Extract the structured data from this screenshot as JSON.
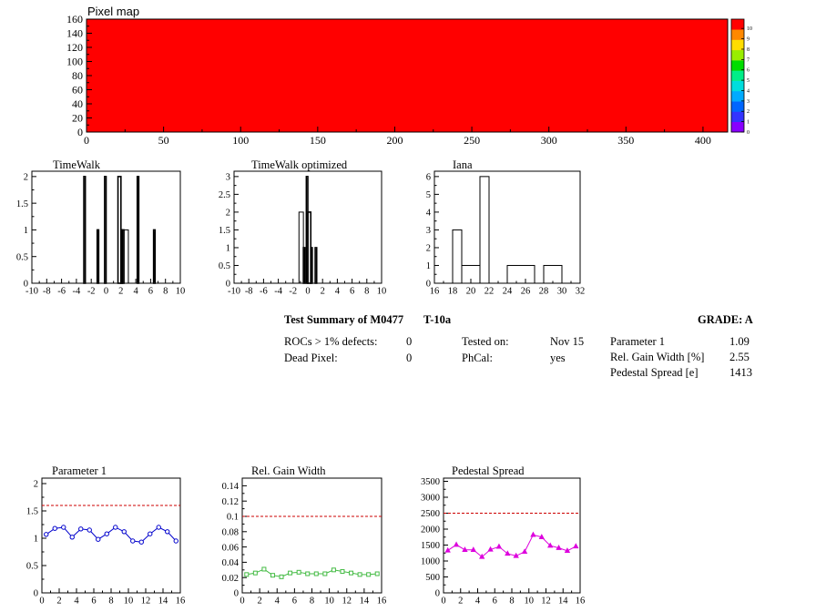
{
  "colors": {
    "map_fill": "#ff0000",
    "series_param1": "#0000cc",
    "series_gain": "#44bb44",
    "series_ped": "#dd00dd",
    "threshold": "#cc0000"
  },
  "summary": {
    "title": "Test Summary of M0477",
    "temp": "T-10a",
    "grade": "GRADE:  A",
    "rocs_label": "ROCs > 1% defects:",
    "rocs_value": "0",
    "dead_label": "Dead Pixel:",
    "dead_value": "0",
    "tested_label": "Tested on:",
    "tested_value": "Nov 15",
    "phcal_label": "PhCal:",
    "phcal_value": "yes",
    "p1_label": "Parameter 1",
    "p1_value": "1.09",
    "gain_label": "Rel. Gain Width [%]",
    "gain_value": "2.55",
    "ped_label": "Pedestal Spread [e]",
    "ped_value": "1413"
  },
  "chart_data": [
    {
      "id": "pixelmap",
      "type": "heatmap",
      "title": "Pixel map",
      "xlim": [
        0,
        416
      ],
      "ylim": [
        0,
        160
      ],
      "xticks": [
        0,
        50,
        100,
        150,
        200,
        250,
        300,
        350,
        400
      ],
      "yticks": [
        0,
        20,
        40,
        60,
        80,
        100,
        120,
        140,
        160
      ],
      "uniform_value": 10,
      "colorbar": {
        "ticks": [
          0,
          1,
          2,
          3,
          4,
          5,
          6,
          7,
          8,
          9,
          10
        ],
        "colors": [
          "#8800ff",
          "#3333ff",
          "#0066ff",
          "#00aaff",
          "#00dddd",
          "#00ee88",
          "#00dd00",
          "#99ee00",
          "#ffdd00",
          "#ff8800",
          "#ff0000"
        ]
      }
    },
    {
      "id": "timewalk",
      "type": "bar",
      "title": "TimeWalk",
      "xlim": [
        -10,
        10
      ],
      "ylim": [
        0,
        2.1
      ],
      "xticks": [
        -10,
        -8,
        -6,
        -4,
        -2,
        0,
        2,
        4,
        6,
        8,
        10
      ],
      "yticks": [
        0,
        0.5,
        1,
        1.5,
        2
      ],
      "bins": [
        [
          -3.0,
          -2.8,
          2
        ],
        [
          -1.2,
          -1.0,
          1
        ],
        [
          -0.2,
          0.0,
          2
        ],
        [
          1.6,
          2.0,
          2
        ],
        [
          2.0,
          2.2,
          1
        ],
        [
          2.2,
          2.4,
          1
        ],
        [
          2.4,
          3.0,
          1
        ],
        [
          4.2,
          4.4,
          2
        ],
        [
          6.4,
          6.6,
          1
        ]
      ]
    },
    {
      "id": "timewalk_opt",
      "type": "bar",
      "title": "TimeWalk optimized",
      "xlim": [
        -10,
        10
      ],
      "ylim": [
        0,
        3.15
      ],
      "xticks": [
        -10,
        -8,
        -6,
        -4,
        -2,
        0,
        2,
        4,
        6,
        8,
        10
      ],
      "yticks": [
        0,
        0.5,
        1,
        1.5,
        2,
        2.5,
        3
      ],
      "bins": [
        [
          -1.2,
          -0.6,
          2
        ],
        [
          -0.6,
          -0.4,
          1
        ],
        [
          -0.4,
          -0.2,
          0
        ],
        [
          -0.2,
          0.0,
          3
        ],
        [
          0.0,
          0.4,
          2
        ],
        [
          0.4,
          0.6,
          1
        ],
        [
          1.0,
          1.2,
          1
        ]
      ]
    },
    {
      "id": "iana",
      "type": "bar",
      "title": "Iana",
      "xlim": [
        16,
        32
      ],
      "ylim": [
        0,
        6.3
      ],
      "xticks": [
        16,
        18,
        20,
        22,
        24,
        26,
        28,
        30,
        32
      ],
      "yticks": [
        0,
        1,
        2,
        3,
        4,
        5,
        6
      ],
      "bins": [
        [
          18,
          19,
          3
        ],
        [
          19,
          21,
          1
        ],
        [
          21,
          22,
          6
        ],
        [
          24,
          27,
          1
        ],
        [
          28,
          30,
          1
        ]
      ]
    },
    {
      "id": "param1",
      "type": "line",
      "title": "Parameter 1",
      "xlim": [
        0,
        16
      ],
      "ylim": [
        0,
        2.1
      ],
      "xticks": [
        0,
        2,
        4,
        6,
        8,
        10,
        12,
        14,
        16
      ],
      "yticks": [
        0,
        0.5,
        1,
        1.5,
        2
      ],
      "threshold": 1.6,
      "marker": "circle",
      "x": [
        0.5,
        1.5,
        2.5,
        3.5,
        4.5,
        5.5,
        6.5,
        7.5,
        8.5,
        9.5,
        10.5,
        11.5,
        12.5,
        13.5,
        14.5,
        15.5
      ],
      "y": [
        1.07,
        1.18,
        1.2,
        1.02,
        1.17,
        1.15,
        0.98,
        1.08,
        1.2,
        1.12,
        0.95,
        0.93,
        1.08,
        1.2,
        1.12,
        0.95
      ]
    },
    {
      "id": "gainwidth",
      "type": "line",
      "title": "Rel. Gain Width",
      "xlim": [
        0,
        16
      ],
      "ylim": [
        0,
        0.15
      ],
      "xticks": [
        0,
        2,
        4,
        6,
        8,
        10,
        12,
        14,
        16
      ],
      "yticks": [
        0,
        0.02,
        0.04,
        0.06,
        0.08,
        0.1,
        0.12,
        0.14
      ],
      "ytick_labels": [
        "0",
        "0.02",
        "0.04",
        "0.06",
        "0.08",
        "0.1",
        "0.12",
        "0.14"
      ],
      "threshold": 0.1,
      "marker": "square",
      "x": [
        0.5,
        1.5,
        2.5,
        3.5,
        4.5,
        5.5,
        6.5,
        7.5,
        8.5,
        9.5,
        10.5,
        11.5,
        12.5,
        13.5,
        14.5,
        15.5
      ],
      "y": [
        0.024,
        0.026,
        0.031,
        0.023,
        0.021,
        0.026,
        0.027,
        0.025,
        0.025,
        0.025,
        0.03,
        0.028,
        0.026,
        0.024,
        0.024,
        0.025
      ]
    },
    {
      "id": "pedestal",
      "type": "line",
      "title": "Pedestal Spread",
      "xlim": [
        0,
        16
      ],
      "ylim": [
        0,
        3600
      ],
      "xticks": [
        0,
        2,
        4,
        6,
        8,
        10,
        12,
        14,
        16
      ],
      "yticks": [
        0,
        500,
        1000,
        1500,
        2000,
        2500,
        3000,
        3500
      ],
      "threshold": 2500,
      "marker": "triangle",
      "x": [
        0.5,
        1.5,
        2.5,
        3.5,
        4.5,
        5.5,
        6.5,
        7.5,
        8.5,
        9.5,
        10.5,
        11.5,
        12.5,
        13.5,
        14.5,
        15.5
      ],
      "y": [
        1330,
        1510,
        1350,
        1350,
        1130,
        1360,
        1450,
        1230,
        1160,
        1290,
        1820,
        1750,
        1480,
        1410,
        1320,
        1460
      ]
    }
  ]
}
